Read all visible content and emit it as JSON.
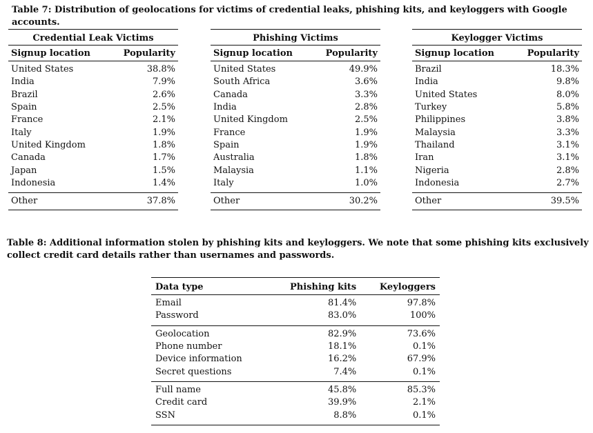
{
  "table7": {
    "caption": "Table 7: Distribution of geolocations for victims of credential leaks, phishing kits, and keyloggers with Google accounts.",
    "col_location": "Signup location",
    "col_popularity": "Popularity",
    "groups": [
      {
        "title": "Credential Leak Victims",
        "rows": [
          {
            "location": "United States",
            "popularity": "38.8%"
          },
          {
            "location": "India",
            "popularity": "7.9%"
          },
          {
            "location": "Brazil",
            "popularity": "2.6%"
          },
          {
            "location": "Spain",
            "popularity": "2.5%"
          },
          {
            "location": "France",
            "popularity": "2.1%"
          },
          {
            "location": "Italy",
            "popularity": "1.9%"
          },
          {
            "location": "United Kingdom",
            "popularity": "1.8%"
          },
          {
            "location": "Canada",
            "popularity": "1.7%"
          },
          {
            "location": "Japan",
            "popularity": "1.5%"
          },
          {
            "location": "Indonesia",
            "popularity": "1.4%"
          }
        ],
        "other": {
          "location": "Other",
          "popularity": "37.8%"
        }
      },
      {
        "title": "Phishing Victims",
        "rows": [
          {
            "location": "United States",
            "popularity": "49.9%"
          },
          {
            "location": "South Africa",
            "popularity": "3.6%"
          },
          {
            "location": "Canada",
            "popularity": "3.3%"
          },
          {
            "location": "India",
            "popularity": "2.8%"
          },
          {
            "location": "United Kingdom",
            "popularity": "2.5%"
          },
          {
            "location": "France",
            "popularity": "1.9%"
          },
          {
            "location": "Spain",
            "popularity": "1.9%"
          },
          {
            "location": "Australia",
            "popularity": "1.8%"
          },
          {
            "location": "Malaysia",
            "popularity": "1.1%"
          },
          {
            "location": "Italy",
            "popularity": "1.0%"
          }
        ],
        "other": {
          "location": "Other",
          "popularity": "30.2%"
        }
      },
      {
        "title": "Keylogger Victims",
        "rows": [
          {
            "location": "Brazil",
            "popularity": "18.3%"
          },
          {
            "location": "India",
            "popularity": "9.8%"
          },
          {
            "location": "United States",
            "popularity": "8.0%"
          },
          {
            "location": "Turkey",
            "popularity": "5.8%"
          },
          {
            "location": "Philippines",
            "popularity": "3.8%"
          },
          {
            "location": "Malaysia",
            "popularity": "3.3%"
          },
          {
            "location": "Thailand",
            "popularity": "3.1%"
          },
          {
            "location": "Iran",
            "popularity": "3.1%"
          },
          {
            "location": "Nigeria",
            "popularity": "2.8%"
          },
          {
            "location": "Indonesia",
            "popularity": "2.7%"
          }
        ],
        "other": {
          "location": "Other",
          "popularity": "39.5%"
        }
      }
    ]
  },
  "table8": {
    "caption": "Table 8: Additional information stolen by phishing kits and keyloggers. We note that some phishing kits exclusively collect credit card details rather than usernames and passwords.",
    "headers": [
      "Data type",
      "Phishing kits",
      "Keyloggers"
    ],
    "groups": [
      [
        {
          "type": "Email",
          "phishing": "81.4%",
          "keyloggers": "97.8%"
        },
        {
          "type": "Password",
          "phishing": "83.0%",
          "keyloggers": "100%"
        }
      ],
      [
        {
          "type": "Geolocation",
          "phishing": "82.9%",
          "keyloggers": "73.6%"
        },
        {
          "type": "Phone number",
          "phishing": "18.1%",
          "keyloggers": "0.1%"
        },
        {
          "type": "Device information",
          "phishing": "16.2%",
          "keyloggers": "67.9%"
        },
        {
          "type": "Secret questions",
          "phishing": "7.4%",
          "keyloggers": "0.1%"
        }
      ],
      [
        {
          "type": "Full name",
          "phishing": "45.8%",
          "keyloggers": "85.3%"
        },
        {
          "type": "Credit card",
          "phishing": "39.9%",
          "keyloggers": "2.1%"
        },
        {
          "type": "SSN",
          "phishing": "8.8%",
          "keyloggers": "0.1%"
        }
      ]
    ]
  }
}
